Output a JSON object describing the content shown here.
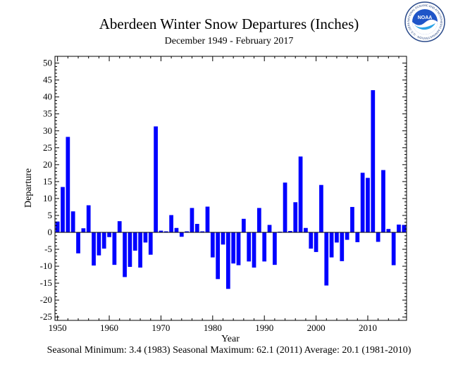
{
  "chart_data": {
    "type": "bar",
    "title": "Aberdeen Winter Snow Departures (Inches)",
    "subtitle": "December 1949 - February 2017",
    "xlabel": "Year",
    "ylabel": "Departure",
    "xlim": [
      1949.5,
      2017.5
    ],
    "ylim": [
      -26,
      52
    ],
    "yticks": [
      -25,
      -20,
      -15,
      -10,
      -5,
      0,
      5,
      10,
      15,
      20,
      25,
      30,
      35,
      40,
      45,
      50
    ],
    "xticks": [
      1950,
      1960,
      1970,
      1980,
      1990,
      2000,
      2010
    ],
    "grid": false,
    "bar_color": "#0000ff",
    "x": [
      1950,
      1951,
      1952,
      1953,
      1954,
      1955,
      1956,
      1957,
      1958,
      1959,
      1960,
      1961,
      1962,
      1963,
      1964,
      1965,
      1966,
      1967,
      1968,
      1969,
      1970,
      1971,
      1972,
      1973,
      1974,
      1975,
      1976,
      1977,
      1978,
      1979,
      1980,
      1981,
      1982,
      1983,
      1984,
      1985,
      1986,
      1987,
      1988,
      1989,
      1990,
      1991,
      1992,
      1993,
      1994,
      1995,
      1996,
      1997,
      1998,
      1999,
      2000,
      2001,
      2002,
      2003,
      2004,
      2005,
      2006,
      2007,
      2008,
      2009,
      2010,
      2011,
      2012,
      2013,
      2014,
      2015,
      2016,
      2017
    ],
    "values": [
      3.2,
      13.4,
      28.2,
      6.2,
      -6.2,
      1.2,
      8.0,
      -9.8,
      -6.8,
      -4.8,
      -1.4,
      -9.6,
      3.3,
      -13.2,
      -10.2,
      -5.4,
      -10.4,
      -3.0,
      -6.6,
      31.3,
      0.5,
      0.3,
      5.1,
      1.3,
      -1.3,
      0.3,
      7.2,
      2.5,
      0.3,
      7.6,
      -7.4,
      -13.8,
      -3.6,
      -16.7,
      -9.2,
      -9.7,
      4.0,
      -8.6,
      -10.4,
      7.2,
      -8.6,
      2.2,
      -9.6,
      0.2,
      14.7,
      0.4,
      8.9,
      22.4,
      1.3,
      -4.8,
      -5.8,
      14.0,
      -15.7,
      -7.4,
      -3.0,
      -8.5,
      -2.2,
      7.5,
      -2.9,
      17.6,
      16.1,
      42.0,
      -2.8,
      18.4,
      1.0,
      -9.7,
      2.3,
      2.2
    ]
  },
  "footer": "Seasonal Minimum: 3.4 (1983) Seasonal Maximum: 62.1 (2011) Average: 20.1 (1981-2010)",
  "logo_text": "NOAA",
  "logo_ring_text": "NATIONAL OCEANIC AND ATMOSPHERIC ADMINISTRATION · U.S. DEPARTMENT OF COMMERCE"
}
